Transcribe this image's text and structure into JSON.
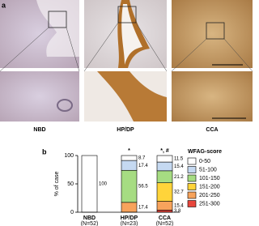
{
  "panel_a": {
    "label": "a",
    "columns": [
      "NBD",
      "HP/DP",
      "CCA"
    ]
  },
  "chart_data": {
    "type": "stacked-bar",
    "panel_label": "b",
    "categories": [
      "NBD",
      "HP/DP",
      "CCA"
    ],
    "category_sublabels": [
      "(N=52)",
      "(N=23)",
      "(N=52)"
    ],
    "bar_annotations": [
      null,
      "*",
      "*, #"
    ],
    "ylabel": "% of case",
    "ylim": [
      0,
      100
    ],
    "yticks": [
      0,
      50,
      100
    ],
    "legend_title": "WFAG-score",
    "legend": "right",
    "series": [
      {
        "name": "0-50",
        "color": "#ffffff",
        "values": [
          100,
          8.7,
          11.5
        ]
      },
      {
        "name": "51-100",
        "color": "#c5d9f1",
        "values": [
          0,
          17.4,
          15.4
        ]
      },
      {
        "name": "101-150",
        "color": "#a6dc82",
        "values": [
          0,
          56.5,
          21.2
        ]
      },
      {
        "name": "151-200",
        "color": "#ffd43a",
        "values": [
          0,
          0,
          32.7
        ]
      },
      {
        "name": "201-250",
        "color": "#f7a35c",
        "values": [
          0,
          17.4,
          15.4
        ]
      },
      {
        "name": "251-300",
        "color": "#e8463c",
        "values": [
          0,
          0,
          3.8
        ]
      }
    ]
  }
}
